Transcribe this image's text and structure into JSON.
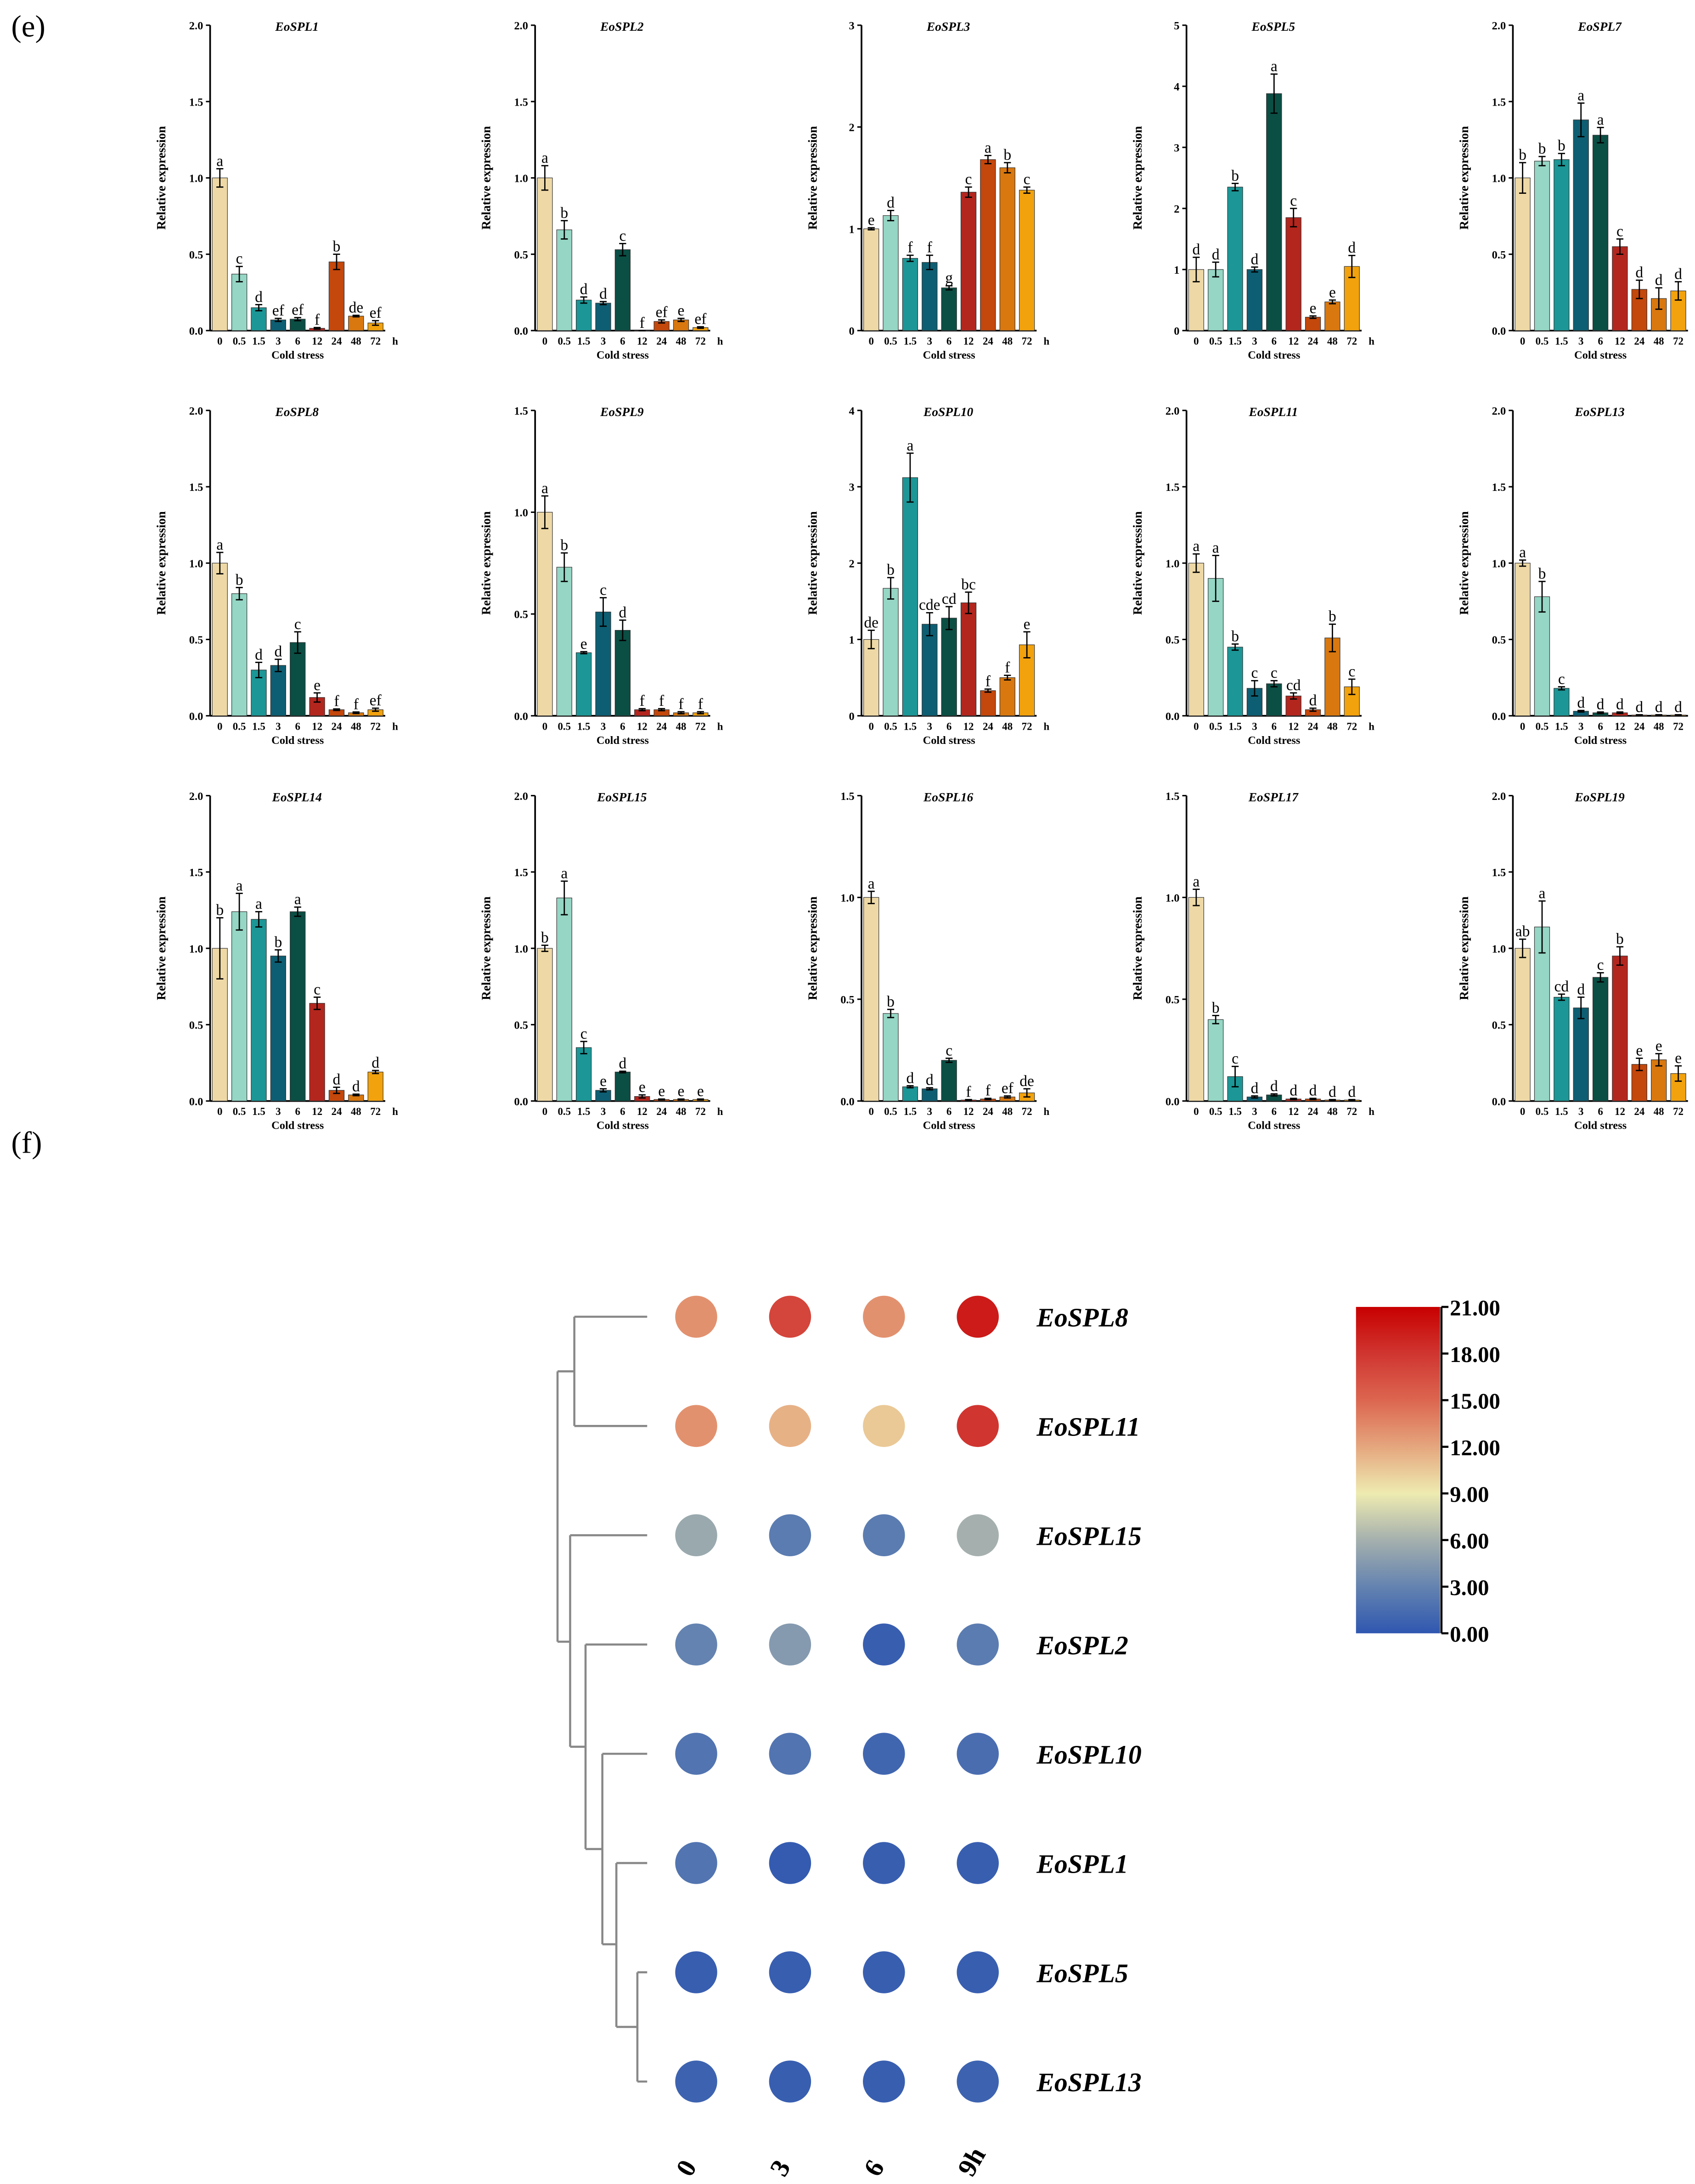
{
  "panel_labels": {
    "e": "(e)",
    "f": "(f)"
  },
  "bar_common": {
    "ylabel": "Relative expression",
    "xlabel": "Cold stress",
    "unit": "h",
    "times": [
      "0",
      "0.5",
      "1.5",
      "3",
      "6",
      "12",
      "24",
      "48",
      "72"
    ],
    "colors": [
      "#EED9A6",
      "#95D6C4",
      "#1C9696",
      "#0D5E72",
      "#0B4E44",
      "#B3261E",
      "#C4470B",
      "#D9780F",
      "#F2A20D"
    ]
  },
  "chart_data": [
    {
      "type": "bar",
      "title": "EoSPL1",
      "ylim": [
        0,
        2
      ],
      "ticks": [
        "0.0",
        "0.5",
        "1.0",
        "1.5",
        "2.0"
      ],
      "values": [
        1.0,
        0.37,
        0.15,
        0.07,
        0.075,
        0.015,
        0.45,
        0.095,
        0.05
      ],
      "errors": [
        0.06,
        0.05,
        0.02,
        0.01,
        0.01,
        0.005,
        0.05,
        0.005,
        0.015
      ],
      "letters": [
        "a",
        "c",
        "d",
        "ef",
        "ef",
        "f",
        "b",
        "de",
        "ef"
      ]
    },
    {
      "type": "bar",
      "title": "EoSPL2",
      "ylim": [
        0,
        2
      ],
      "ticks": [
        "0.0",
        "0.5",
        "1.0",
        "1.5",
        "2.0"
      ],
      "values": [
        1.0,
        0.66,
        0.2,
        0.18,
        0.53,
        0.0,
        0.06,
        0.07,
        0.02
      ],
      "errors": [
        0.08,
        0.06,
        0.02,
        0.01,
        0.04,
        0,
        0.01,
        0.01,
        0.005
      ],
      "letters": [
        "a",
        "b",
        "d",
        "d",
        "c",
        "f",
        "ef",
        "e",
        "ef"
      ]
    },
    {
      "type": "bar",
      "title": "EoSPL3",
      "ylim": [
        0,
        3
      ],
      "ticks": [
        "0",
        "1",
        "2",
        "3"
      ],
      "values": [
        1.0,
        1.13,
        0.71,
        0.67,
        0.42,
        1.36,
        1.68,
        1.6,
        1.38
      ],
      "errors": [
        0.01,
        0.05,
        0.03,
        0.07,
        0.02,
        0.05,
        0.04,
        0.05,
        0.03
      ],
      "letters": [
        "e",
        "d",
        "f",
        "f",
        "g",
        "c",
        "a",
        "b",
        "c"
      ]
    },
    {
      "type": "bar",
      "title": "EoSPL5",
      "ylim": [
        0,
        5
      ],
      "ticks": [
        "0",
        "1",
        "2",
        "3",
        "4",
        "5"
      ],
      "values": [
        1.0,
        1.0,
        2.35,
        1.0,
        3.88,
        1.85,
        0.22,
        0.47,
        1.05
      ],
      "errors": [
        0.2,
        0.12,
        0.06,
        0.04,
        0.32,
        0.15,
        0.02,
        0.03,
        0.18
      ],
      "letters": [
        "d",
        "d",
        "b",
        "d",
        "a",
        "c",
        "e",
        "e",
        "d"
      ]
    },
    {
      "type": "bar",
      "title": "EoSPL7",
      "ylim": [
        0,
        2
      ],
      "ticks": [
        "0.0",
        "0.5",
        "1.0",
        "1.5",
        "2.0"
      ],
      "values": [
        1.0,
        1.11,
        1.12,
        1.38,
        1.28,
        0.55,
        0.27,
        0.21,
        0.26
      ],
      "errors": [
        0.1,
        0.03,
        0.04,
        0.11,
        0.05,
        0.05,
        0.06,
        0.07,
        0.06
      ],
      "letters": [
        "b",
        "b",
        "b",
        "a",
        "a",
        "c",
        "d",
        "d",
        "d"
      ]
    },
    {
      "type": "bar",
      "title": "EoSPL8",
      "ylim": [
        0,
        2
      ],
      "ticks": [
        "0.0",
        "0.5",
        "1.0",
        "1.5",
        "2.0"
      ],
      "values": [
        1.0,
        0.8,
        0.3,
        0.33,
        0.48,
        0.12,
        0.04,
        0.02,
        0.04
      ],
      "errors": [
        0.07,
        0.04,
        0.05,
        0.04,
        0.07,
        0.03,
        0.005,
        0.005,
        0.01
      ],
      "letters": [
        "a",
        "b",
        "d",
        "d",
        "c",
        "e",
        "f",
        "f",
        "ef"
      ]
    },
    {
      "type": "bar",
      "title": "EoSPL9",
      "ylim": [
        0,
        1.5
      ],
      "ticks": [
        "0.0",
        "0.5",
        "1.0",
        "1.5"
      ],
      "values": [
        1.0,
        0.73,
        0.31,
        0.51,
        0.42,
        0.03,
        0.03,
        0.015,
        0.015
      ],
      "errors": [
        0.08,
        0.07,
        0.005,
        0.07,
        0.05,
        0.005,
        0.005,
        0.005,
        0.005
      ],
      "letters": [
        "a",
        "b",
        "e",
        "c",
        "d",
        "f",
        "f",
        "f",
        "f"
      ]
    },
    {
      "type": "bar",
      "title": "EoSPL10",
      "ylim": [
        0,
        4
      ],
      "ticks": [
        "0",
        "1",
        "2",
        "3",
        "4"
      ],
      "values": [
        1.0,
        1.67,
        3.12,
        1.2,
        1.28,
        1.48,
        0.33,
        0.5,
        0.93
      ],
      "errors": [
        0.12,
        0.14,
        0.32,
        0.15,
        0.15,
        0.14,
        0.02,
        0.03,
        0.17
      ],
      "letters": [
        "de",
        "b",
        "a",
        "cde",
        "cd",
        "bc",
        "f",
        "f",
        "e"
      ]
    },
    {
      "type": "bar",
      "title": "EoSPL11",
      "ylim": [
        0,
        2
      ],
      "ticks": [
        "0.0",
        "0.5",
        "1.0",
        "1.5",
        "2.0"
      ],
      "values": [
        1.0,
        0.9,
        0.45,
        0.18,
        0.21,
        0.13,
        0.04,
        0.51,
        0.19
      ],
      "errors": [
        0.06,
        0.15,
        0.02,
        0.05,
        0.02,
        0.02,
        0.01,
        0.09,
        0.05
      ],
      "letters": [
        "a",
        "a",
        "b",
        "c",
        "c",
        "cd",
        "d",
        "b",
        "c"
      ]
    },
    {
      "type": "bar",
      "title": "EoSPL13",
      "ylim": [
        0,
        2
      ],
      "ticks": [
        "0.0",
        "0.5",
        "1.0",
        "1.5",
        "2.0"
      ],
      "values": [
        1.0,
        0.78,
        0.18,
        0.03,
        0.02,
        0.02,
        0.005,
        0.005,
        0.005
      ],
      "errors": [
        0.02,
        0.1,
        0.01,
        0.005,
        0.005,
        0.005,
        0.002,
        0.002,
        0.002
      ],
      "letters": [
        "a",
        "b",
        "c",
        "d",
        "d",
        "d",
        "d",
        "d",
        "d"
      ]
    },
    {
      "type": "bar",
      "title": "EoSPL14",
      "ylim": [
        0,
        2
      ],
      "ticks": [
        "0.0",
        "0.5",
        "1.0",
        "1.5",
        "2.0"
      ],
      "values": [
        1.0,
        1.24,
        1.19,
        0.95,
        1.24,
        0.64,
        0.07,
        0.04,
        0.19
      ],
      "errors": [
        0.2,
        0.12,
        0.05,
        0.04,
        0.03,
        0.04,
        0.02,
        0.005,
        0.01
      ],
      "letters": [
        "b",
        "a",
        "a",
        "b",
        "a",
        "c",
        "d",
        "d",
        "d"
      ]
    },
    {
      "type": "bar",
      "title": "EoSPL15",
      "ylim": [
        0,
        2
      ],
      "ticks": [
        "0.0",
        "0.5",
        "1.0",
        "1.5",
        "2.0"
      ],
      "values": [
        1.0,
        1.33,
        0.35,
        0.07,
        0.19,
        0.03,
        0.01,
        0.01,
        0.01
      ],
      "errors": [
        0.02,
        0.11,
        0.04,
        0.01,
        0.005,
        0.01,
        0.003,
        0.003,
        0.003
      ],
      "letters": [
        "b",
        "a",
        "c",
        "e",
        "d",
        "e",
        "e",
        "e",
        "e"
      ]
    },
    {
      "type": "bar",
      "title": "EoSPL16",
      "ylim": [
        0,
        1.5
      ],
      "ticks": [
        "0.0",
        "0.5",
        "1.0",
        "1.5"
      ],
      "values": [
        1.0,
        0.43,
        0.07,
        0.06,
        0.2,
        0.005,
        0.01,
        0.02,
        0.04
      ],
      "errors": [
        0.03,
        0.02,
        0.005,
        0.005,
        0.01,
        0.002,
        0.003,
        0.005,
        0.02
      ],
      "letters": [
        "a",
        "b",
        "d",
        "d",
        "c",
        "f",
        "f",
        "ef",
        "de"
      ]
    },
    {
      "type": "bar",
      "title": "EoSPL17",
      "ylim": [
        0,
        1.5
      ],
      "ticks": [
        "0.0",
        "0.5",
        "1.0",
        "1.5"
      ],
      "values": [
        1.0,
        0.4,
        0.12,
        0.02,
        0.03,
        0.01,
        0.01,
        0.005,
        0.005
      ],
      "errors": [
        0.04,
        0.02,
        0.05,
        0.005,
        0.005,
        0.003,
        0.003,
        0.002,
        0.002
      ],
      "letters": [
        "a",
        "b",
        "c",
        "d",
        "d",
        "d",
        "d",
        "d",
        "d"
      ]
    },
    {
      "type": "bar",
      "title": "EoSPL19",
      "ylim": [
        0,
        2
      ],
      "ticks": [
        "0.0",
        "0.5",
        "1.0",
        "1.5",
        "2.0"
      ],
      "values": [
        1.0,
        1.14,
        0.68,
        0.61,
        0.81,
        0.95,
        0.24,
        0.27,
        0.18
      ],
      "errors": [
        0.06,
        0.17,
        0.02,
        0.07,
        0.03,
        0.06,
        0.04,
        0.04,
        0.05
      ],
      "letters": [
        "ab",
        "a",
        "cd",
        "d",
        "c",
        "b",
        "e",
        "e",
        "e"
      ]
    }
  ],
  "heatmap": {
    "type": "heatmap",
    "rows": [
      "EoSPL8",
      "EoSPL11",
      "EoSPL15",
      "EoSPL2",
      "EoSPL10",
      "EoSPL1",
      "EoSPL5",
      "EoSPL13"
    ],
    "columns": [
      "0",
      "3",
      "6",
      "9h"
    ],
    "values": [
      [
        13,
        17,
        13,
        19.5
      ],
      [
        13,
        11.5,
        10.5,
        18
      ],
      [
        5.5,
        2.5,
        2.5,
        6
      ],
      [
        3,
        4.5,
        0.5,
        2.5
      ],
      [
        2,
        2,
        1,
        1.5
      ],
      [
        2,
        0.3,
        0.5,
        0.5
      ],
      [
        0.5,
        0.5,
        0.5,
        0.5
      ],
      [
        0.8,
        0.5,
        0.5,
        0.8
      ]
    ],
    "scale_ticks": [
      "21.00",
      "18.00",
      "15.00",
      "12.00",
      "9.00",
      "6.00",
      "3.00",
      "0.00"
    ],
    "scale_range": [
      0,
      21
    ],
    "scale_colors": [
      "#2F57B0",
      "#6483B0",
      "#A5B0AE",
      "#EEEBB0",
      "#E5A67E",
      "#DC6650",
      "#D03530",
      "#C80000"
    ]
  }
}
